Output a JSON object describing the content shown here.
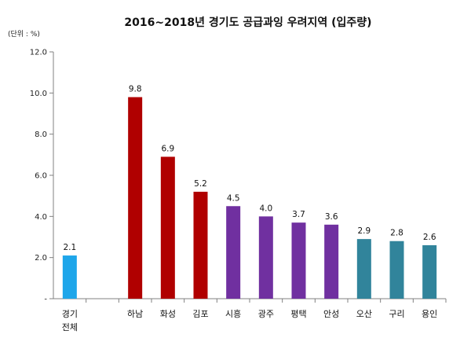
{
  "chart_data": {
    "type": "bar",
    "title": "2016~2018년 경기도 공급과잉 우려지역 (입주량)",
    "unit_label": "(단위 : %)",
    "xlabel": "",
    "ylabel": "",
    "ylim": [
      0,
      12
    ],
    "y_ticks": [
      "-",
      "2.0",
      "4.0",
      "6.0",
      "8.0",
      "10.0",
      "12.0"
    ],
    "grid": false,
    "legend": "none",
    "categories": [
      [
        "경기",
        "전체"
      ],
      [
        ""
      ],
      [
        "하남"
      ],
      [
        "화성"
      ],
      [
        "김포"
      ],
      [
        "시흥"
      ],
      [
        "광주"
      ],
      [
        "평택"
      ],
      [
        "안성"
      ],
      [
        "오산"
      ],
      [
        "구리"
      ],
      [
        "용인"
      ]
    ],
    "values": [
      2.1,
      null,
      9.8,
      6.9,
      5.2,
      4.5,
      4.0,
      3.7,
      3.6,
      2.9,
      2.8,
      2.6
    ],
    "data_labels": [
      "2.1",
      "",
      "9.8",
      "6.9",
      "5.2",
      "4.5",
      "4.0",
      "3.7",
      "3.6",
      "2.9",
      "2.8",
      "2.6"
    ],
    "colors": [
      "#1EA6EA",
      "",
      "#B00000",
      "#B00000",
      "#B00000",
      "#7030A0",
      "#7030A0",
      "#7030A0",
      "#7030A0",
      "#31849B",
      "#31849B",
      "#31849B"
    ]
  }
}
